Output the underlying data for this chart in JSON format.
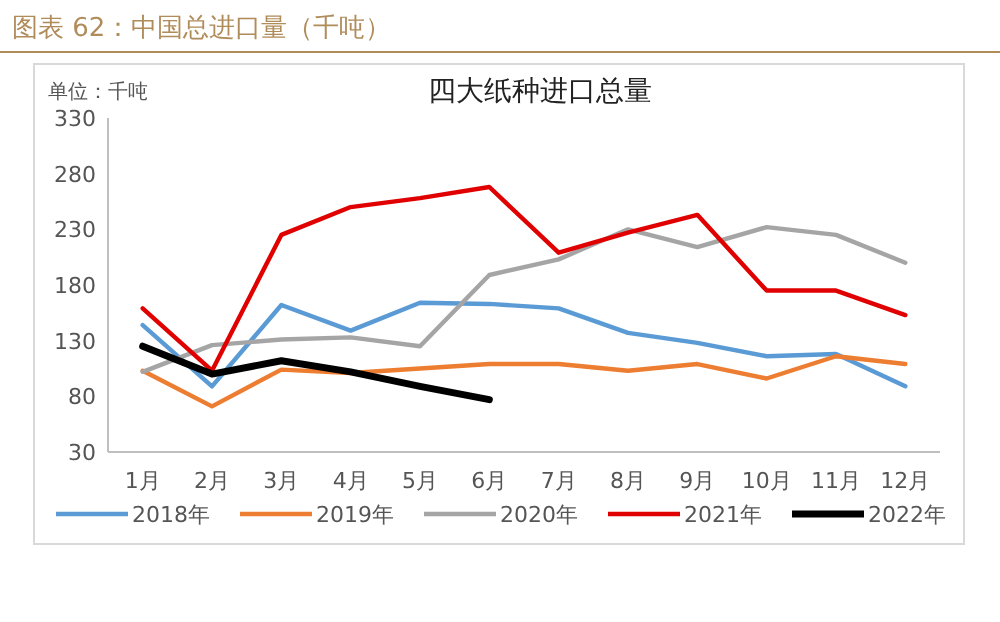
{
  "chart_data": {
    "type": "line",
    "title": "图表 62：中国总进口量（千吨）",
    "subtitle": "四大纸种进口总量",
    "annotations": [
      "单位：千吨"
    ],
    "categories": [
      "1月",
      "2月",
      "3月",
      "4月",
      "5月",
      "6月",
      "7月",
      "8月",
      "9月",
      "10月",
      "11月",
      "12月"
    ],
    "series": [
      {
        "name": "2018年",
        "color": "#5b9bd5",
        "values": [
          144,
          89,
          162,
          139,
          164,
          163,
          159,
          137,
          128,
          116,
          118,
          89
        ]
      },
      {
        "name": "2019年",
        "color": "#ed7d31",
        "values": [
          103,
          71,
          104,
          101,
          105,
          109,
          109,
          103,
          109,
          96,
          116,
          109
        ]
      },
      {
        "name": "2020年",
        "color": "#a5a5a5",
        "values": [
          102,
          126,
          131,
          133,
          125,
          189,
          203,
          230,
          214,
          232,
          225,
          200
        ]
      },
      {
        "name": "2021年",
        "color": "#e00000",
        "values": [
          159,
          103,
          225,
          250,
          258,
          268,
          209,
          227,
          243,
          175,
          175,
          153
        ]
      },
      {
        "name": "2022年",
        "color": "#000000",
        "values": [
          125,
          100,
          112,
          102,
          89,
          77,
          null,
          null,
          null,
          null,
          null,
          null
        ]
      }
    ],
    "ylim": [
      30,
      330
    ],
    "yticks": [
      30,
      80,
      130,
      180,
      230,
      280,
      330
    ],
    "grid": false,
    "legend": "bottom"
  }
}
